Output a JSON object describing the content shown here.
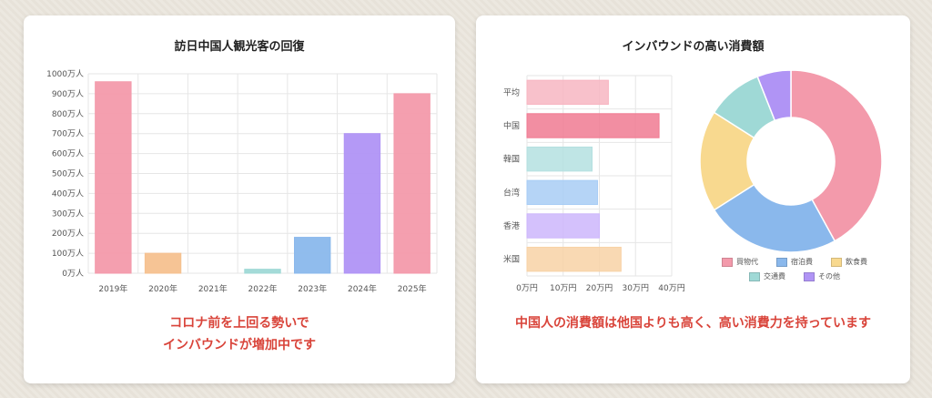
{
  "chart_data": [
    {
      "type": "bar",
      "title": "訪日中国人観光客の回復",
      "categories": [
        "2019年",
        "2020年",
        "2021年",
        "2022年",
        "2023年",
        "2024年",
        "2025年"
      ],
      "values": [
        960,
        100,
        0,
        20,
        180,
        700,
        900
      ],
      "yticks": [
        "0万人",
        "100万人",
        "200万人",
        "300万人",
        "400万人",
        "500万人",
        "600万人",
        "700万人",
        "800万人",
        "900万人",
        "1000万人"
      ],
      "ylim": [
        0,
        1000
      ],
      "grid": true,
      "colors": [
        "#f39aab",
        "#f5c18f",
        "#f39aab",
        "#9fd9d6",
        "#8ab8ec",
        "#b094f5",
        "#f39aab"
      ],
      "caption_lines": [
        "コロナ前を上回る勢いで",
        "インバウンドが増加中です"
      ]
    },
    {
      "type": "bar",
      "orientation": "horizontal",
      "title": "インバウンドの高い消費額",
      "categories": [
        "平均",
        "中国",
        "韓国",
        "台湾",
        "香港",
        "米国"
      ],
      "values": [
        22.5,
        36.5,
        18,
        19.5,
        20,
        26
      ],
      "xticks": [
        "0万円",
        "10万円",
        "20万円",
        "30万円",
        "40万円"
      ],
      "xlim": [
        0,
        40
      ],
      "grid": true,
      "colors": [
        "#f7b6c2",
        "#f07a92",
        "#b4e0e0",
        "#a8cdf5",
        "#cdb6fb",
        "#f8d2a6"
      ],
      "caption": "中国人の消費額は他国よりも高く、高い消費力を持っています"
    },
    {
      "type": "pie",
      "donut": true,
      "labels": [
        "買物代",
        "宿泊費",
        "飲食費",
        "交通費",
        "その他"
      ],
      "values": [
        42,
        24,
        18,
        10,
        6
      ],
      "colors": [
        "#f39aab",
        "#8ab8ec",
        "#f8d98f",
        "#9fd9d6",
        "#b094f5"
      ],
      "legend": "bottom"
    }
  ]
}
